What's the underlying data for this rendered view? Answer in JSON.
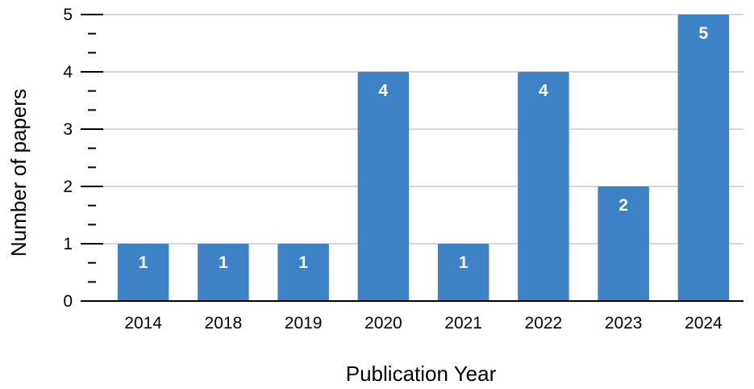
{
  "chart_data": {
    "type": "bar",
    "title": "",
    "xlabel": "Publication Year",
    "ylabel": "Number of papers",
    "categories": [
      "2014",
      "2018",
      "2019",
      "2020",
      "2021",
      "2022",
      "2023",
      "2024"
    ],
    "values": [
      1,
      1,
      1,
      4,
      1,
      4,
      2,
      5
    ],
    "ylim": [
      0,
      5
    ],
    "yticks": [
      "0",
      "1",
      "2",
      "3",
      "4",
      "5"
    ],
    "minor_ticks_per_interval": 2,
    "grid": true,
    "legend": "none",
    "data_labels": true
  },
  "colors": {
    "bar": "#3d82c4",
    "grid": "#c8c8c8",
    "axis": "#000000",
    "data_label": "#ffffff"
  }
}
